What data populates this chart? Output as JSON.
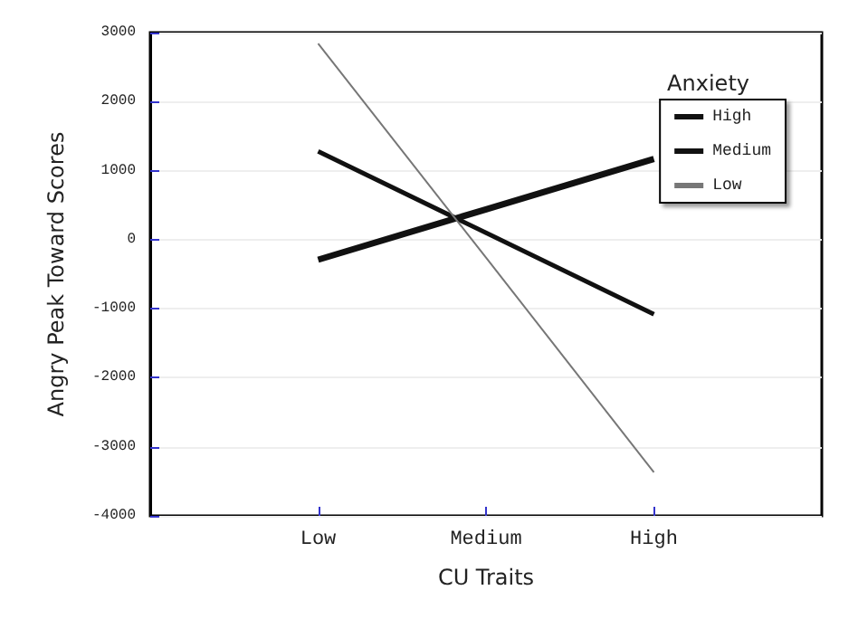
{
  "chart_data": {
    "type": "line",
    "xlabel": "CU Traits",
    "ylabel": "Angry Peak Toward Scores",
    "legend_title": "Anxiety",
    "categories": [
      "Low",
      "Medium",
      "High"
    ],
    "series": [
      {
        "name": "High",
        "color": "#111111",
        "values": [
          -290,
          440,
          1170
        ]
      },
      {
        "name": "Medium",
        "color": "#111111",
        "values": [
          1280,
          100,
          -1080
        ]
      },
      {
        "name": "Low",
        "color": "#777777",
        "values": [
          2840,
          -260,
          -3370
        ]
      }
    ],
    "ylim": [
      -4000,
      3000
    ],
    "yticks": [
      -4000,
      -3000,
      -2000,
      -1000,
      0,
      1000,
      2000,
      3000
    ],
    "grid": "y",
    "legend": "top right"
  }
}
